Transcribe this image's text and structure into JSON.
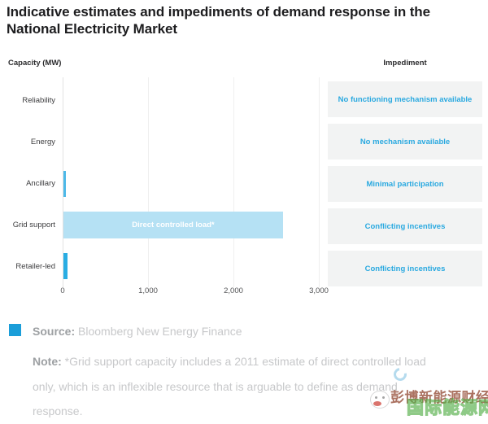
{
  "title": "Indicative estimates and impediments of demand response in the National Electricity Market",
  "column_headers": {
    "capacity": "Capacity (MW)",
    "impediment": "Impediment"
  },
  "chart_data": {
    "type": "bar",
    "orientation": "horizontal",
    "title": "Indicative estimates and impediments of demand response in the National Electricity Market",
    "xlabel": "Capacity (MW)",
    "xlim": [
      0,
      3000
    ],
    "x_ticks": [
      "0",
      "1,000",
      "2,000",
      "3,000"
    ],
    "x_tick_values": [
      0,
      1000,
      2000,
      3000
    ],
    "grid": true,
    "categories": [
      "Reliability",
      "Energy",
      "Ancillary",
      "Grid support",
      "Retailer-led"
    ],
    "values": [
      0,
      0,
      30,
      2570,
      45
    ],
    "bar_inner_label": "Direct controlled load*",
    "bar_inner_label_category": "Grid support",
    "bar_colors": [
      "#4db9e8",
      "#4db9e8",
      "#4db9e8",
      "#b5e1f4",
      "#29ade3"
    ]
  },
  "impediments": [
    "No functioning mechanism available",
    "No mechanism available",
    "Minimal participation",
    "Conflicting incentives",
    "Conflicting incentives"
  ],
  "footer": {
    "source_label": "Source:",
    "source_text": "Bloomberg New Energy Finance",
    "note_label": "Note:",
    "note_text": "*Grid support capacity includes a 2011 estimate of direct controlled load only, which is an inflexible resource that is arguable to define as demand response."
  },
  "watermark": {
    "line1": "彭博新能源财经",
    "line2": "国际能源网"
  },
  "colors": {
    "accent_blue": "#1b9ed9",
    "impediment_text": "#2aa9e0",
    "impediment_box_bg": "#f2f3f3",
    "bar_grid_support": "#b5e1f4",
    "bar_ancillary": "#4db9e8",
    "bar_retailer_led": "#29ade3",
    "title_text": "#1d1d1f",
    "note_text": "#c7c8ca"
  }
}
